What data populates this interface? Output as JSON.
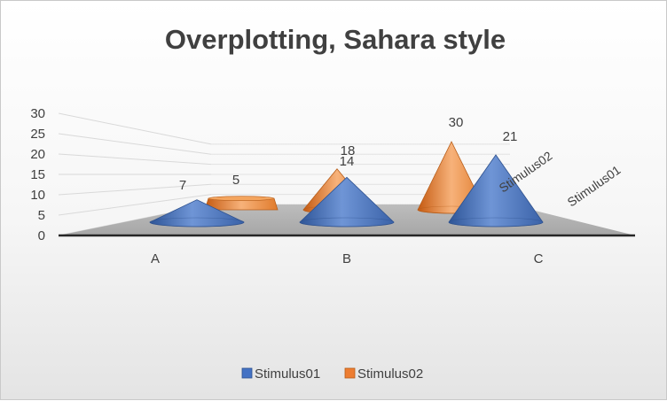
{
  "chart_data": {
    "type": "bar",
    "style": "3d-cone",
    "title": "Overplotting, Sahara style",
    "categories": [
      "A",
      "B",
      "C"
    ],
    "series": [
      {
        "name": "Stimulus01",
        "values": [
          7,
          14,
          21
        ],
        "color": "#4472C4"
      },
      {
        "name": "Stimulus02",
        "values": [
          5,
          18,
          30
        ],
        "color": "#ED7D31"
      }
    ],
    "ylim": [
      0,
      30
    ],
    "yticks": [
      0,
      5,
      10,
      15,
      20,
      25,
      30
    ],
    "grid": true,
    "legend": "bottom",
    "depth_axis_labels": [
      "Stimulus02",
      "Stimulus01"
    ]
  }
}
